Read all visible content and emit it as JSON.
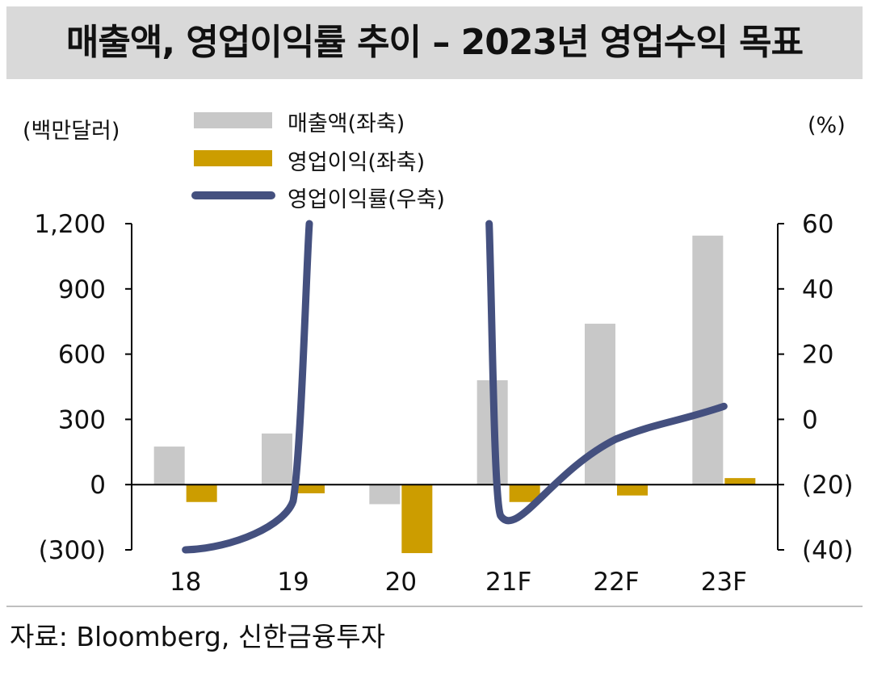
{
  "title": "매출액, 영업이익률 추이 – 2023년 영업수익 목표",
  "source": "자료: Bloomberg, 신한금융투자",
  "left_unit": "(백만달러)",
  "right_unit": "(%)",
  "colors": {
    "revenue": "#c8c8c8",
    "operating_profit": "#cc9d00",
    "margin": "#44507f",
    "title_band": "#d9d9d9"
  },
  "chart_data": {
    "type": "bar",
    "categories": [
      "18",
      "19",
      "20",
      "21F",
      "22F",
      "23F"
    ],
    "series": [
      {
        "name": "매출액(좌축)",
        "axis": "left",
        "type": "bar",
        "values": [
          175,
          235,
          -90,
          480,
          740,
          1145
        ]
      },
      {
        "name": "영업이익(좌축)",
        "axis": "left",
        "type": "bar",
        "values": [
          -80,
          -40,
          -315,
          -80,
          -50,
          30
        ]
      },
      {
        "name": "영업이익률(우축)",
        "axis": "right",
        "type": "line",
        "values": [
          -40,
          -25,
          null,
          -27,
          -6,
          4
        ]
      }
    ],
    "left_axis": {
      "range": [
        -300,
        1200
      ],
      "ticks": [
        -300,
        0,
        300,
        600,
        900,
        1200
      ],
      "tick_labels": [
        "(300)",
        "0",
        "300",
        "600",
        "900",
        "1,200"
      ]
    },
    "right_axis": {
      "range": [
        -40,
        60
      ],
      "ticks": [
        -40,
        -20,
        0,
        20,
        40,
        60
      ],
      "tick_labels": [
        "(40)",
        "(20)",
        "0",
        "20",
        "40",
        "60"
      ]
    },
    "grid": false,
    "legend_position": "top-center"
  }
}
